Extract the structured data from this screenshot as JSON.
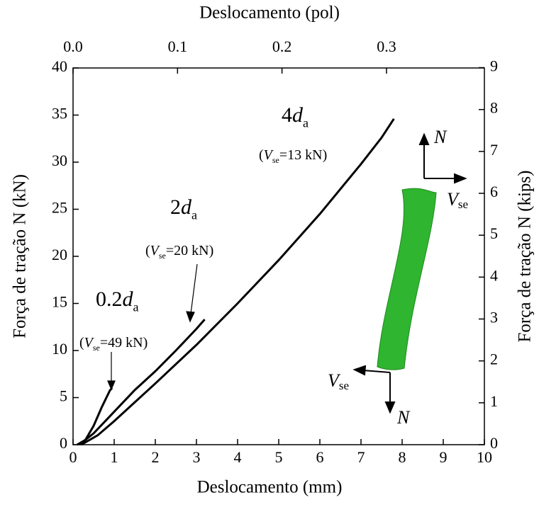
{
  "chart_data": {
    "type": "line",
    "x_label": "Deslocamento (mm)",
    "x2_label": "Deslocamento (pol)",
    "y_label": "Força de tração N (kN)",
    "y2_label": "Força de tração N (kips)",
    "xlim": [
      0,
      10
    ],
    "xticks": [
      0,
      1,
      2,
      3,
      4,
      5,
      6,
      7,
      8,
      9,
      10
    ],
    "x2lim": [
      0,
      0.3937
    ],
    "x2ticks": [
      {
        "value": 0,
        "label": "0.0"
      },
      0.1,
      0.2,
      0.3
    ],
    "ylim": [
      0,
      40
    ],
    "yticks": [
      0,
      5,
      10,
      15,
      20,
      25,
      30,
      35,
      40
    ],
    "y2lim": [
      0,
      8.992
    ],
    "y2ticks": [
      0,
      1,
      2,
      3,
      4,
      5,
      6,
      7,
      8,
      9
    ],
    "series": [
      {
        "color": "#000000",
        "x": [
          0.1,
          0.3,
          0.5,
          0.7,
          0.9,
          0.95
        ],
        "values": [
          0,
          0.5,
          2,
          4,
          5.8,
          6
        ]
      },
      {
        "color": "#000000",
        "x": [
          0.15,
          0.5,
          1,
          1.5,
          2,
          2.5,
          3,
          3.2
        ],
        "values": [
          0,
          1.2,
          3.5,
          5.8,
          7.8,
          10,
          12.3,
          13.3
        ]
      },
      {
        "color": "#000000",
        "x": [
          0.2,
          0.6,
          1,
          1.5,
          2,
          3,
          4,
          5,
          6,
          7,
          7.5,
          7.8
        ],
        "values": [
          0,
          1,
          2.5,
          4.5,
          6.5,
          10.6,
          15,
          19.6,
          24.5,
          29.8,
          32.6,
          34.6
        ]
      }
    ],
    "annotations": [
      {
        "label": [
          "0.2",
          "d",
          "a"
        ],
        "note": [
          "(",
          "V",
          "se",
          "=49 kN)"
        ]
      },
      {
        "label": [
          "2",
          "d",
          "a"
        ],
        "note": [
          "(",
          "V",
          "se",
          "=20 kN)"
        ]
      },
      {
        "label": [
          "4",
          "d",
          "a"
        ],
        "note": [
          "(",
          "V",
          "se",
          "=13 kN)"
        ]
      }
    ],
    "inset_labels": {
      "n_top": "N",
      "v_right": "V",
      "v_right_sub": "se",
      "v_left": "V",
      "v_left_sub": "se",
      "n_bottom": "N"
    }
  }
}
